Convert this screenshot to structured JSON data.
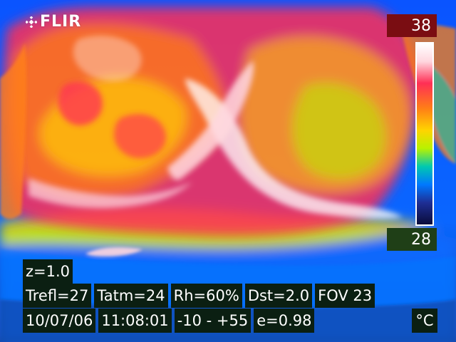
{
  "logo": {
    "text": "FLIR"
  },
  "scale": {
    "max_label": "38",
    "min_label": "28",
    "colors": [
      "#ffffff",
      "#ffd7df",
      "#ff2f55",
      "#ff7f16",
      "#ffd400",
      "#b8f200",
      "#00c8b0",
      "#0078ff",
      "#1e2e95",
      "#0a0c3a"
    ]
  },
  "hud": {
    "zoom": "z=1.0",
    "trefl": "Trefl=27",
    "tatm": "Tatm=24",
    "rh": "Rh=60%",
    "dst": "Dst=2.0",
    "fov": "FOV 23",
    "date": "10/07/06",
    "time": "11:08:01",
    "range": "-10 -  +55",
    "emissivity": "e=0.98",
    "unit": "°C"
  },
  "thermal_view": {
    "subject": "thermal camera infrared image",
    "palette": "iron",
    "background_color": "#0b5cff"
  }
}
